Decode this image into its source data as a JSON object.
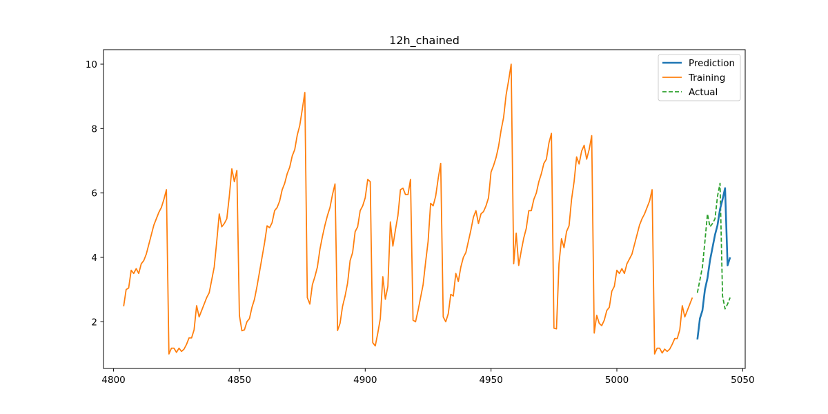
{
  "chart_data": {
    "type": "line",
    "title": "12h_chained",
    "xlabel": "",
    "ylabel": "",
    "xlim": [
      4796,
      5051
    ],
    "ylim": [
      0.55,
      10.45
    ],
    "xticks": [
      4800,
      4850,
      4900,
      4950,
      5000,
      5050
    ],
    "yticks": [
      2,
      4,
      6,
      8,
      10
    ],
    "grid": false,
    "legend_position": "top-right",
    "series": [
      {
        "name": "Prediction",
        "color": "#1f77b4",
        "style": "solid",
        "x": [
          5032,
          5033,
          5034,
          5035,
          5036,
          5037,
          5038,
          5039,
          5040,
          5041,
          5042,
          5043,
          5044,
          5045
        ],
        "y": [
          1.45,
          2.1,
          2.35,
          3.0,
          3.35,
          3.9,
          4.3,
          4.7,
          5.0,
          5.5,
          5.8,
          6.15,
          3.75,
          4.0
        ]
      },
      {
        "name": "Training",
        "color": "#ff7f0e",
        "style": "solid",
        "x": [
          4804,
          4805,
          4806,
          4807,
          4808,
          4809,
          4810,
          4811,
          4812,
          4813,
          4814,
          4815,
          4816,
          4817,
          4818,
          4819,
          4820,
          4821,
          4822,
          4823,
          4824,
          4825,
          4826,
          4827,
          4828,
          4829,
          4830,
          4831,
          4832,
          4833,
          4834,
          4835,
          4836,
          4837,
          4838,
          4839,
          4840,
          4841,
          4842,
          4843,
          4844,
          4845,
          4846,
          4847,
          4848,
          4849,
          4850,
          4851,
          4852,
          4853,
          4854,
          4855,
          4856,
          4857,
          4858,
          4859,
          4860,
          4861,
          4862,
          4863,
          4864,
          4865,
          4866,
          4867,
          4868,
          4869,
          4870,
          4871,
          4872,
          4873,
          4874,
          4875,
          4876,
          4877,
          4878,
          4879,
          4880,
          4881,
          4882,
          4883,
          4884,
          4885,
          4886,
          4887,
          4888,
          4889,
          4890,
          4891,
          4892,
          4893,
          4894,
          4895,
          4896,
          4897,
          4898,
          4899,
          4900,
          4901,
          4902,
          4903,
          4904,
          4905,
          4906,
          4907,
          4908,
          4909,
          4910,
          4911,
          4912,
          4913,
          4914,
          4915,
          4916,
          4917,
          4918,
          4919,
          4920,
          4921,
          4922,
          4923,
          4924,
          4925,
          4926,
          4927,
          4928,
          4929,
          4930,
          4931,
          4932,
          4933,
          4934,
          4935,
          4936,
          4937,
          4938,
          4939,
          4940,
          4941,
          4942,
          4943,
          4944,
          4945,
          4946,
          4947,
          4948,
          4949,
          4950,
          4951,
          4952,
          4953,
          4954,
          4955,
          4956,
          4957,
          4958,
          4959,
          4960,
          4961,
          4962,
          4963,
          4964,
          4965,
          4966,
          4967,
          4968,
          4969,
          4970,
          4971,
          4972,
          4973,
          4974,
          4975,
          4976,
          4977,
          4978,
          4979,
          4980,
          4981,
          4982,
          4983,
          4984,
          4985,
          4986,
          4987,
          4988,
          4989,
          4990,
          4991,
          4992,
          4993,
          4994,
          4995,
          4996,
          4997,
          4998,
          4999,
          5000,
          5001,
          5002,
          5003,
          5004,
          5005,
          5006,
          5007,
          5008,
          5009,
          5010,
          5011,
          5012,
          5013,
          5014,
          5015,
          5016,
          5017,
          5018,
          5019,
          5020,
          5021,
          5022,
          5023,
          5024,
          5025,
          5026,
          5027,
          5028,
          5029,
          5030
        ],
        "y": [
          2.48,
          3.0,
          3.05,
          3.6,
          3.5,
          3.65,
          3.5,
          3.8,
          3.9,
          4.1,
          4.4,
          4.7,
          5.0,
          5.2,
          5.4,
          5.55,
          5.8,
          6.1,
          1.0,
          1.18,
          1.18,
          1.05,
          1.18,
          1.08,
          1.15,
          1.3,
          1.5,
          1.5,
          1.75,
          2.5,
          2.15,
          2.35,
          2.55,
          2.75,
          2.9,
          3.3,
          3.7,
          4.5,
          5.35,
          4.95,
          5.05,
          5.2,
          5.9,
          6.75,
          6.35,
          6.7,
          2.2,
          1.72,
          1.75,
          2.0,
          2.1,
          2.45,
          2.7,
          3.1,
          3.55,
          4.0,
          4.45,
          4.98,
          4.92,
          5.08,
          5.45,
          5.55,
          5.75,
          6.1,
          6.3,
          6.6,
          6.8,
          7.15,
          7.35,
          7.8,
          8.1,
          8.6,
          9.12,
          2.75,
          2.55,
          3.15,
          3.4,
          3.7,
          4.25,
          4.65,
          5.0,
          5.3,
          5.55,
          5.95,
          6.28,
          1.73,
          1.95,
          2.48,
          2.8,
          3.2,
          3.9,
          4.15,
          4.8,
          4.95,
          5.45,
          5.6,
          5.85,
          6.42,
          6.35,
          1.35,
          1.25,
          1.65,
          2.1,
          3.4,
          2.7,
          3.1,
          5.1,
          4.35,
          4.85,
          5.3,
          6.1,
          6.15,
          5.95,
          5.95,
          6.42,
          2.05,
          2.0,
          2.35,
          2.75,
          3.15,
          3.85,
          4.5,
          5.68,
          5.6,
          5.9,
          6.45,
          6.92,
          2.15,
          2.0,
          2.25,
          2.85,
          2.8,
          3.5,
          3.25,
          3.7,
          4.0,
          4.15,
          4.5,
          4.85,
          5.25,
          5.45,
          5.05,
          5.35,
          5.42,
          5.6,
          5.85,
          6.65,
          6.85,
          7.1,
          7.45,
          7.95,
          8.35,
          9.05,
          9.5,
          10.0,
          3.8,
          4.75,
          3.75,
          4.2,
          4.6,
          4.9,
          5.45,
          5.45,
          5.8,
          6.0,
          6.35,
          6.6,
          6.92,
          7.05,
          7.55,
          7.85,
          1.8,
          1.78,
          3.8,
          4.58,
          4.3,
          4.8,
          4.98,
          5.8,
          6.35,
          7.12,
          6.9,
          7.3,
          7.48,
          7.05,
          7.35,
          7.78,
          1.65,
          2.2,
          1.95,
          1.88,
          2.05,
          2.35,
          2.45,
          2.95,
          3.1,
          3.6,
          3.5,
          3.65,
          3.5,
          3.8,
          3.95,
          4.1,
          4.4,
          4.7,
          5.0,
          5.2,
          5.35,
          5.55,
          5.75,
          6.1,
          1.0,
          1.18,
          1.18,
          1.03,
          1.15,
          1.08,
          1.15,
          1.3,
          1.48,
          1.48,
          1.75,
          2.5,
          2.15,
          2.35,
          2.55,
          2.75
        ]
      },
      {
        "name": "Actual",
        "color": "#2ca02c",
        "style": "dashed",
        "x": [
          5032,
          5033,
          5034,
          5035,
          5036,
          5037,
          5038,
          5039,
          5040,
          5041,
          5042,
          5043,
          5044,
          5045
        ],
        "y": [
          2.9,
          3.3,
          3.7,
          4.5,
          5.35,
          4.95,
          5.05,
          5.2,
          5.9,
          6.3,
          2.8,
          2.4,
          2.55,
          2.75
        ]
      }
    ]
  }
}
